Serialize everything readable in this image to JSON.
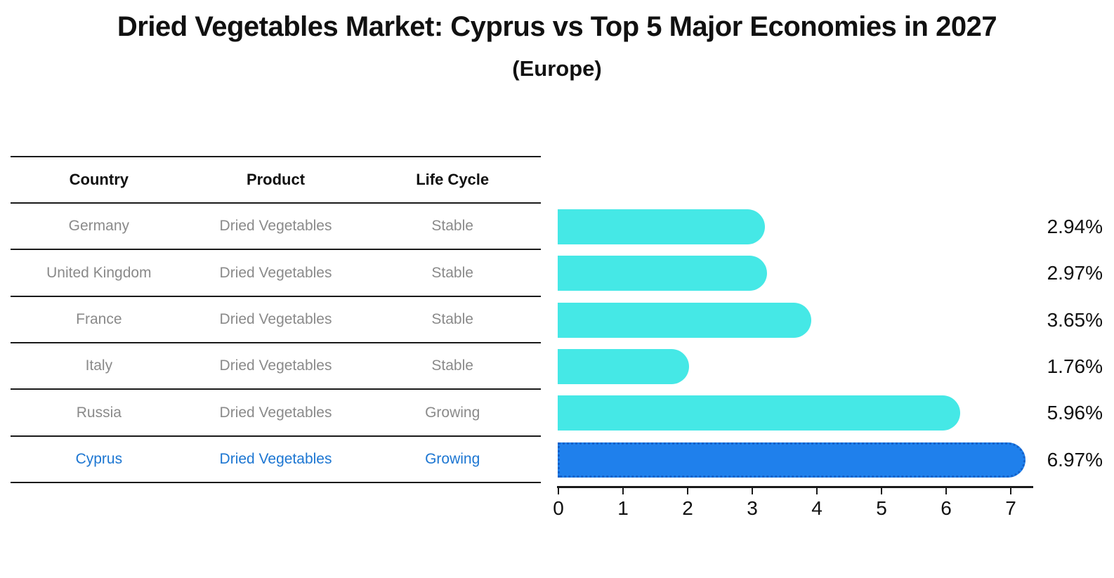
{
  "title": "Dried Vegetables Market: Cyprus vs Top 5 Major Economies in 2027",
  "subtitle": "(Europe)",
  "table": {
    "headers": [
      "Country",
      "Product",
      "Life Cycle"
    ],
    "rows": [
      {
        "country": "Germany",
        "product": "Dried Vegetables",
        "life_cycle": "Stable",
        "highlight": false
      },
      {
        "country": "United Kingdom",
        "product": "Dried Vegetables",
        "life_cycle": "Stable",
        "highlight": false
      },
      {
        "country": "France",
        "product": "Dried Vegetables",
        "life_cycle": "Stable",
        "highlight": false
      },
      {
        "country": "Italy",
        "product": "Dried Vegetables",
        "life_cycle": "Stable",
        "highlight": false
      },
      {
        "country": "Russia",
        "product": "Dried Vegetables",
        "life_cycle": "Growing",
        "highlight": false
      },
      {
        "country": "Cyprus",
        "product": "Dried Vegetables",
        "life_cycle": "Growing",
        "highlight": true
      }
    ]
  },
  "chart_data": {
    "type": "bar",
    "orientation": "horizontal",
    "title": "Dried Vegetables Market: Cyprus vs Top 5 Major Economies in 2027",
    "subtitle": "(Europe)",
    "categories": [
      "Germany",
      "United Kingdom",
      "France",
      "Italy",
      "Russia",
      "Cyprus"
    ],
    "values": [
      2.94,
      2.97,
      3.65,
      1.76,
      5.96,
      6.97
    ],
    "value_labels": [
      "2.94%",
      "2.97%",
      "3.65%",
      "1.76%",
      "5.96%",
      "6.97%"
    ],
    "highlight_index": 5,
    "xlabel": "",
    "ylabel": "",
    "xlim": [
      0,
      7.35
    ],
    "xticks": [
      0,
      1,
      2,
      3,
      4,
      5,
      6,
      7
    ],
    "grid": false,
    "legend": false
  },
  "colors": {
    "bar": "#45e8e6",
    "highlight_bar": "#1f80ec",
    "highlight_border": "#1461c9",
    "highlight_text": "#1c76d2",
    "text": "#111111",
    "muted_text": "#8a8a8a",
    "line": "#1a1a1a",
    "background": "#ffffff"
  }
}
